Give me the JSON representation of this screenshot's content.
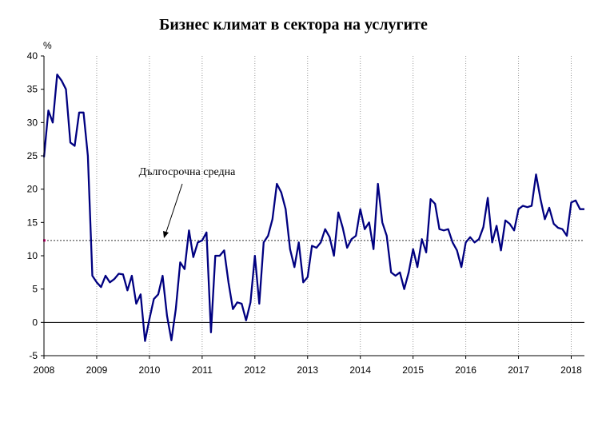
{
  "chart_data": {
    "type": "line",
    "title": "Бизнес климат в сектора на услугите",
    "ylabel": "%",
    "ylim": [
      -5,
      40
    ],
    "yticks": [
      "40",
      "35",
      "30",
      "25",
      "20",
      "15",
      "10",
      "5",
      "0",
      "-5"
    ],
    "xlim": [
      2008.0,
      2018.25
    ],
    "xticks": [
      "2008",
      "2009",
      "2010",
      "2011",
      "2012",
      "2013",
      "2014",
      "2015",
      "2016",
      "2017",
      "2018"
    ],
    "grid": "vertical dotted lines at years",
    "long_term_average": 12.3,
    "annotation": "Дългосрочна средна",
    "series": [
      {
        "x": [
          2008.0,
          2008.083,
          2008.167,
          2008.25,
          2008.333,
          2008.417,
          2008.5,
          2008.583,
          2008.667,
          2008.75,
          2008.833,
          2008.917,
          2009.0,
          2009.083,
          2009.167,
          2009.25,
          2009.333,
          2009.417,
          2009.5,
          2009.583,
          2009.667,
          2009.75,
          2009.833,
          2009.917,
          2010.0,
          2010.083,
          2010.167,
          2010.25,
          2010.333,
          2010.417,
          2010.5,
          2010.583,
          2010.667,
          2010.75,
          2010.833,
          2010.917,
          2011.0,
          2011.083,
          2011.167,
          2011.25,
          2011.333,
          2011.417,
          2011.5,
          2011.583,
          2011.667,
          2011.75,
          2011.833,
          2011.917,
          2012.0,
          2012.083,
          2012.167,
          2012.25,
          2012.333,
          2012.417,
          2012.5,
          2012.583,
          2012.667,
          2012.75,
          2012.833,
          2012.917,
          2013.0,
          2013.083,
          2013.167,
          2013.25,
          2013.333,
          2013.417,
          2013.5,
          2013.583,
          2013.667,
          2013.75,
          2013.833,
          2013.917,
          2014.0,
          2014.083,
          2014.167,
          2014.25,
          2014.333,
          2014.417,
          2014.5,
          2014.583,
          2014.667,
          2014.75,
          2014.833,
          2014.917,
          2015.0,
          2015.083,
          2015.167,
          2015.25,
          2015.333,
          2015.417,
          2015.5,
          2015.583,
          2015.667,
          2015.75,
          2015.833,
          2015.917,
          2016.0,
          2016.083,
          2016.167,
          2016.25,
          2016.333,
          2016.417,
          2016.5,
          2016.583,
          2016.667,
          2016.75,
          2016.833,
          2016.917,
          2017.0,
          2017.083,
          2017.167,
          2017.25,
          2017.333,
          2017.417,
          2017.5,
          2017.583,
          2017.667,
          2017.75,
          2017.833,
          2017.917,
          2018.0,
          2018.083,
          2018.167,
          2018.25
        ],
        "y": [
          24.8,
          31.8,
          30.0,
          37.2,
          36.3,
          35.0,
          27.0,
          26.5,
          31.5,
          31.5,
          25.0,
          7.0,
          6.0,
          5.3,
          7.0,
          6.0,
          6.5,
          7.3,
          7.2,
          4.8,
          7.0,
          2.8,
          4.2,
          -2.8,
          0.5,
          3.5,
          4.2,
          7.0,
          1.0,
          -2.7,
          2.0,
          9.0,
          8.0,
          13.8,
          9.8,
          12.0,
          12.3,
          13.5,
          -1.5,
          10.0,
          10.0,
          10.8,
          6.0,
          2.0,
          3.0,
          2.8,
          0.3,
          3.0,
          10.0,
          2.8,
          12.0,
          13.0,
          15.5,
          20.8,
          19.5,
          17.0,
          11.0,
          8.3,
          12.0,
          6.0,
          6.8,
          11.5,
          11.2,
          12.0,
          14.0,
          12.8,
          10.0,
          16.5,
          14.2,
          11.2,
          12.5,
          13.0,
          17.0,
          14.0,
          15.0,
          11.0,
          20.8,
          15.0,
          13.0,
          7.5,
          7.0,
          7.5,
          5.0,
          7.5,
          11.0,
          8.3,
          12.5,
          10.5,
          18.5,
          17.8,
          14.0,
          13.8,
          14.0,
          12.0,
          10.8,
          8.3,
          12.0,
          12.8,
          12.0,
          12.5,
          14.3,
          18.7,
          12.0,
          14.5,
          10.8,
          15.3,
          14.8,
          13.8,
          17.0,
          17.5,
          17.3,
          17.5,
          22.2,
          18.5,
          15.5,
          17.2,
          14.8,
          14.2,
          14.0,
          13.0,
          18.0,
          18.3,
          17.0,
          17.0
        ]
      }
    ]
  }
}
